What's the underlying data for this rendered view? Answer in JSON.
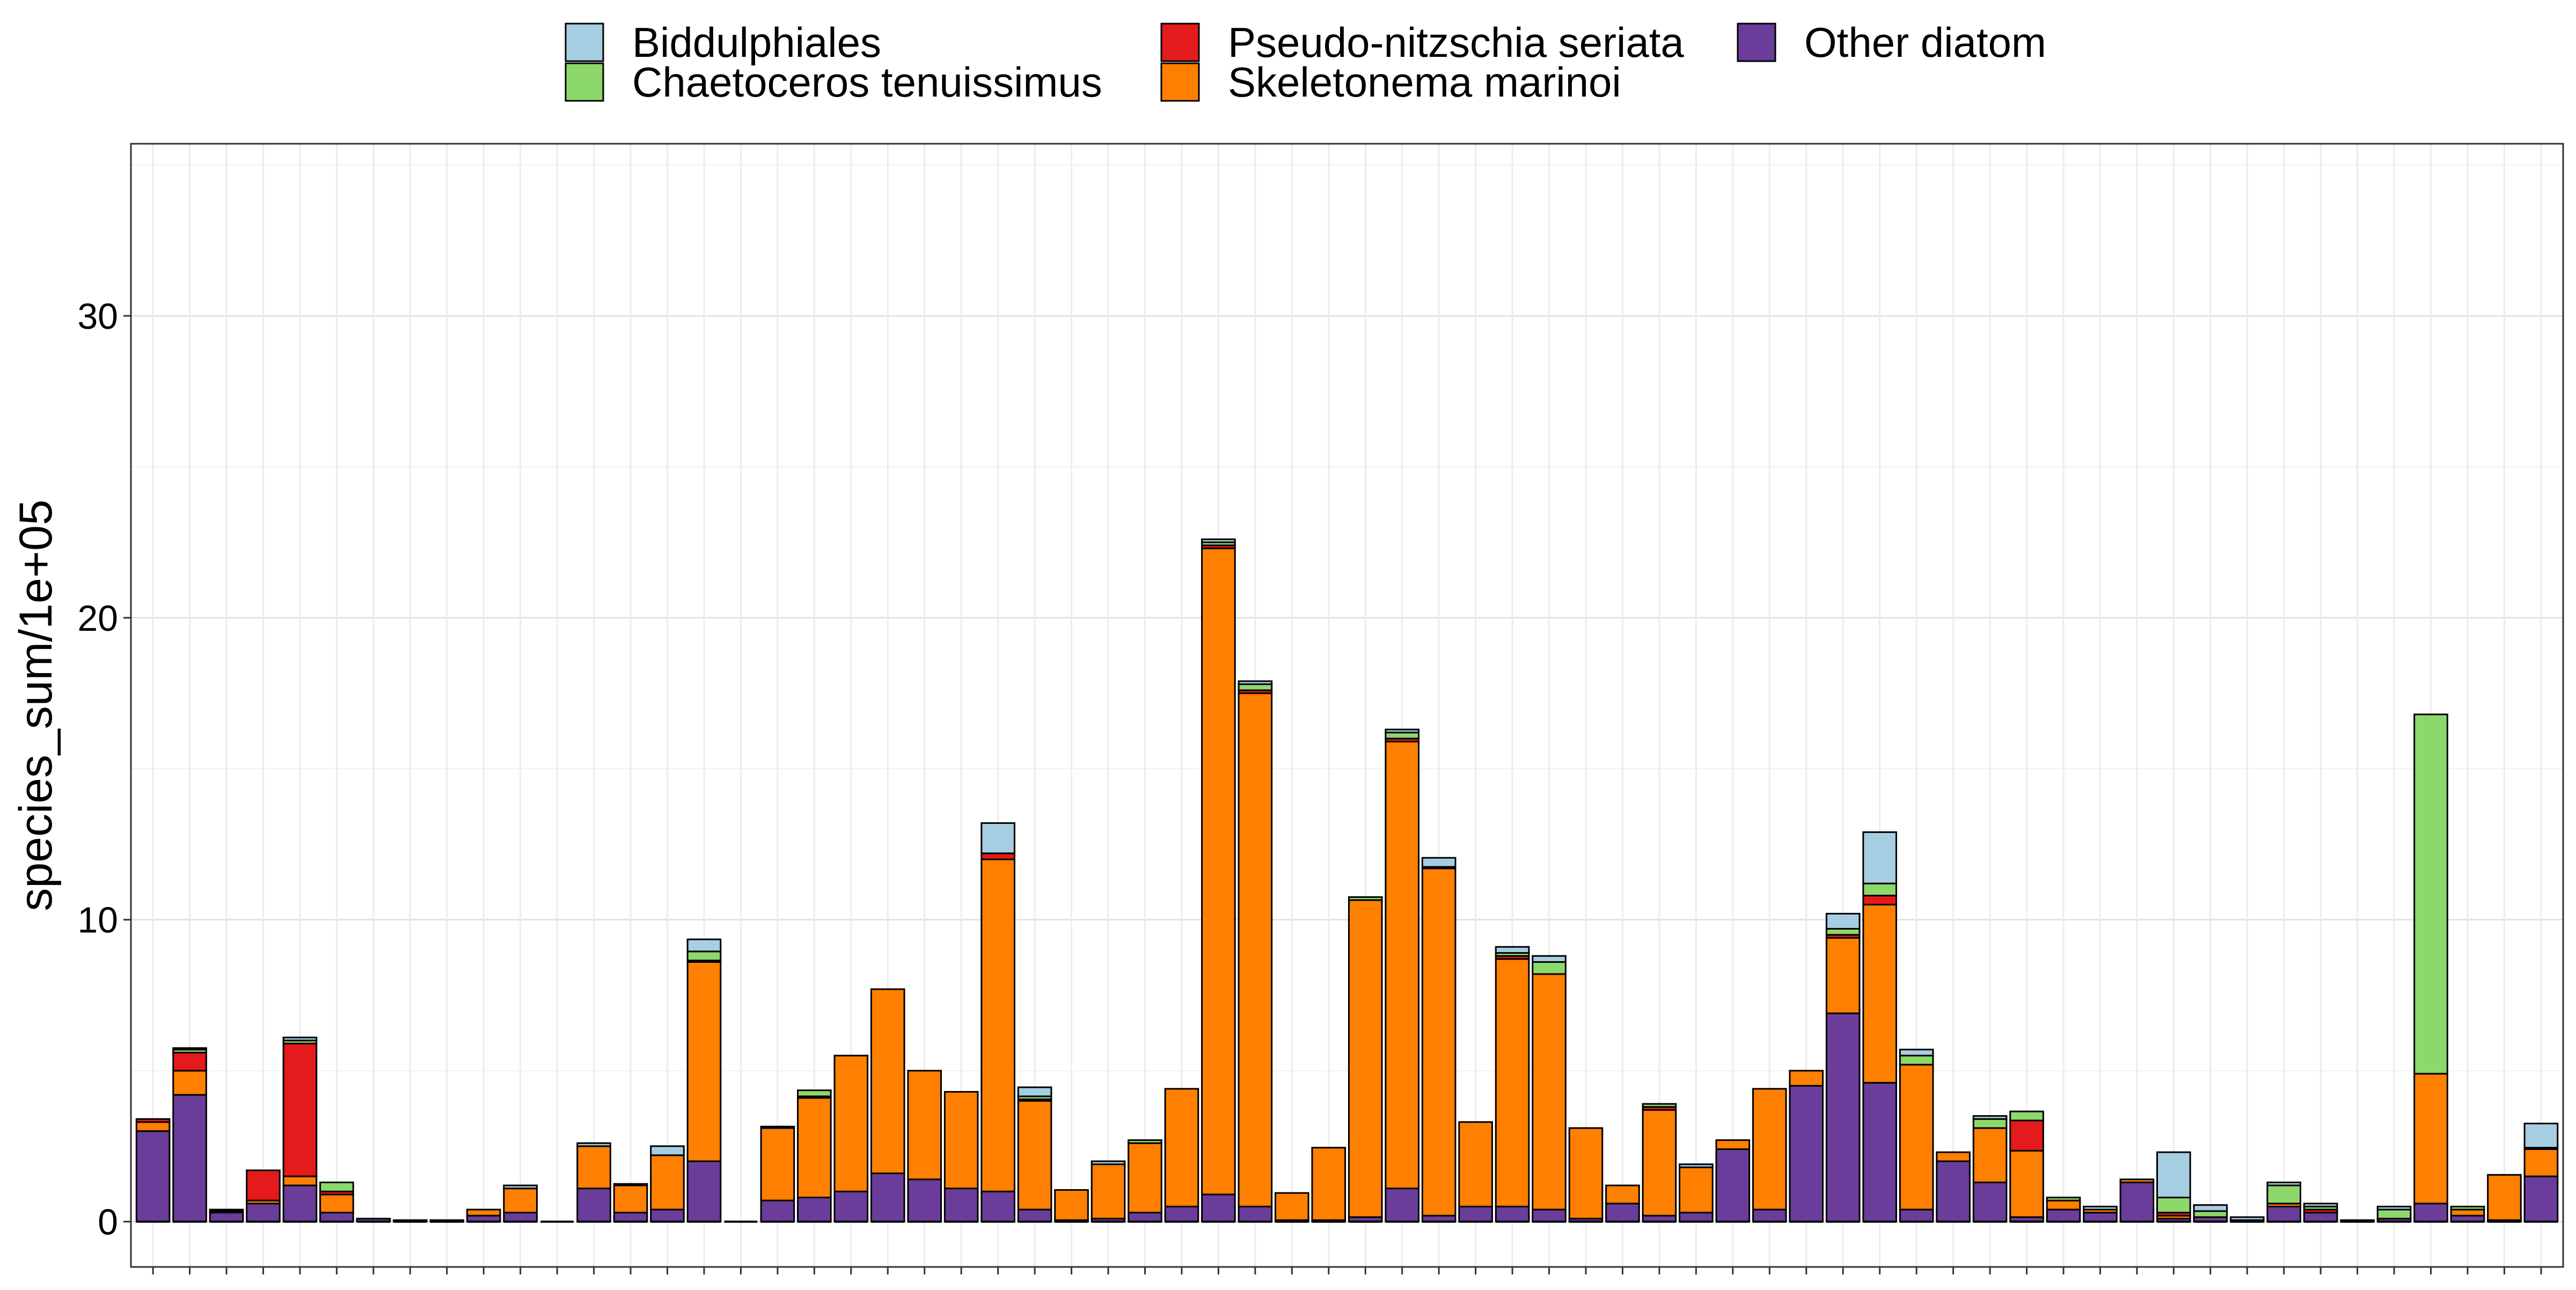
{
  "chart_data": {
    "type": "bar",
    "stacked": true,
    "title": "",
    "xlabel": "",
    "ylabel": "species_sum/1e+05",
    "ylim": [
      -1.5,
      35.7
    ],
    "y_ticks": [
      0,
      10,
      20,
      30
    ],
    "grid": true,
    "legend_position": "top",
    "n_categories": 66,
    "series": [
      {
        "name": "Other diatom",
        "color": "#6A3D9A",
        "values": [
          3.0,
          4.2,
          0.3,
          0.6,
          1.2,
          0.3,
          0.1,
          0.05,
          0.05,
          0.2,
          0.3,
          0,
          1.1,
          0.3,
          0.4,
          2.0,
          0,
          0.7,
          0.8,
          1.0,
          1.6,
          1.4,
          1.1,
          1.0,
          0.4,
          0.05,
          0.1,
          0.3,
          0.5,
          0.9,
          0.5,
          0.05,
          0.05,
          0.15,
          1.1,
          0.2,
          0.5,
          0.5,
          0.4,
          0.1,
          0.6,
          0.2,
          0.3,
          2.4,
          0.4,
          4.5,
          6.9,
          4.6,
          0.4,
          2.0,
          1.3,
          0.15,
          0.4,
          0.3,
          1.3,
          0.1,
          0.15,
          0.05,
          0.5,
          0.3,
          0.05,
          0.1,
          0.6,
          0.2,
          0.05,
          1.5
        ]
      },
      {
        "name": "Skeletonema marinoi",
        "color": "#FF7F00",
        "values": [
          0.3,
          0.8,
          0.05,
          0.1,
          0.3,
          0.6,
          0,
          0,
          0,
          0.2,
          0.8,
          0,
          1.4,
          0.9,
          1.8,
          6.6,
          0,
          2.4,
          3.3,
          4.5,
          6.1,
          3.6,
          3.2,
          11.0,
          3.6,
          1.0,
          1.8,
          2.3,
          3.9,
          21.4,
          17.0,
          0.9,
          2.4,
          10.5,
          14.8,
          11.5,
          2.8,
          8.2,
          7.8,
          3.0,
          0.6,
          3.5,
          1.5,
          0.3,
          4.0,
          0.5,
          2.5,
          5.9,
          4.8,
          0.3,
          1.8,
          2.2,
          0.3,
          0.1,
          0.1,
          0.1,
          0,
          0,
          0.1,
          0,
          0,
          0,
          4.3,
          0.2,
          1.5,
          0.9
        ]
      },
      {
        "name": "Pseudo-nitzschia seriata",
        "color": "#E41A1C",
        "values": [
          0.1,
          0.6,
          0.05,
          1.0,
          4.4,
          0.1,
          0,
          0,
          0,
          0,
          0,
          0,
          0,
          0,
          0,
          0.05,
          0,
          0,
          0.05,
          0,
          0,
          0,
          0,
          0.2,
          0.05,
          0,
          0,
          0,
          0,
          0.1,
          0.1,
          0,
          0,
          0,
          0.1,
          0.05,
          0,
          0.1,
          0,
          0,
          0,
          0.1,
          0,
          0,
          0,
          0,
          0.1,
          0.3,
          0,
          0,
          0,
          1.0,
          0,
          0,
          0,
          0.1,
          0,
          0,
          0,
          0.1,
          0,
          0,
          0,
          0,
          0,
          0.05
        ]
      },
      {
        "name": "Chaetoceros tenuissimus",
        "color": "#8DD86A",
        "values": [
          0,
          0.1,
          0,
          0,
          0.1,
          0.3,
          0,
          0,
          0,
          0,
          0,
          0,
          0,
          0,
          0,
          0.3,
          0,
          0,
          0.2,
          0,
          0,
          0,
          0,
          0,
          0.1,
          0,
          0,
          0.1,
          0,
          0.1,
          0.2,
          0,
          0,
          0.1,
          0.2,
          0,
          0,
          0.1,
          0.4,
          0,
          0,
          0.1,
          0,
          0,
          0,
          0,
          0.2,
          0.4,
          0.3,
          0,
          0.3,
          0.3,
          0.1,
          0,
          0,
          0.5,
          0.2,
          0,
          0.6,
          0.1,
          0,
          0.3,
          11.9,
          0.1,
          0,
          0
        ]
      },
      {
        "name": "Biddulphiales",
        "color": "#A6CEE3",
        "values": [
          0,
          0.05,
          0,
          0,
          0.1,
          0,
          0,
          0,
          0,
          0,
          0.1,
          0,
          0.1,
          0.05,
          0.3,
          0.4,
          0,
          0.05,
          0,
          0,
          0,
          0,
          0,
          1.0,
          0.3,
          0,
          0.1,
          0,
          0,
          0.1,
          0.1,
          0,
          0,
          0,
          0.1,
          0.3,
          0,
          0.2,
          0.2,
          0,
          0,
          0,
          0.1,
          0,
          0,
          0,
          0.5,
          1.7,
          0.2,
          0,
          0.1,
          0,
          0,
          0.1,
          0,
          1.5,
          0.2,
          0.1,
          0.1,
          0.1,
          0,
          0.1,
          0,
          0,
          0,
          0.8
        ]
      }
    ],
    "legend_order": [
      "Biddulphiales",
      "Chaetoceros tenuissimus",
      "Pseudo-nitzschia seriata",
      "Skeletonema marinoi",
      "Other diatom"
    ]
  }
}
